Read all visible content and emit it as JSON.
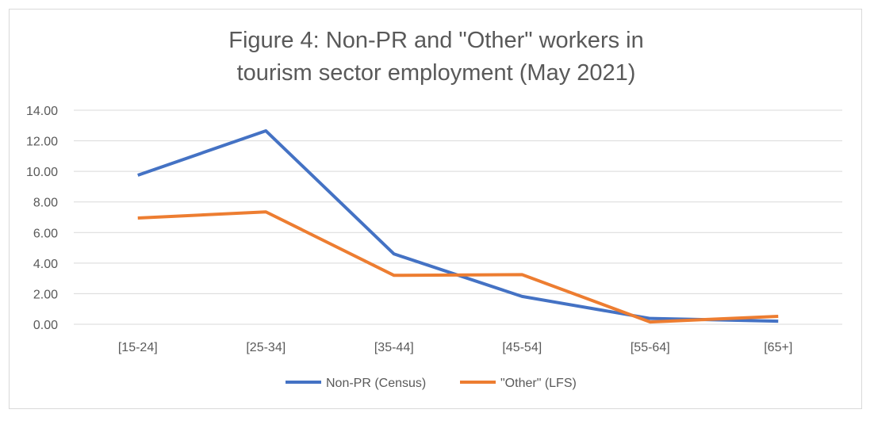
{
  "chart_data": {
    "type": "line",
    "title": [
      "Figure 4: Non-PR and \"Other\" workers in",
      "tourism sector employment (May 2021)"
    ],
    "xlabel": "",
    "ylabel": "",
    "categories": [
      "[15-24]",
      "[25-34]",
      "[35-44]",
      "[45-54]",
      "[55-64]",
      "[65+]"
    ],
    "yticks": [
      "0.00",
      "2.00",
      "4.00",
      "6.00",
      "8.00",
      "10.00",
      "12.00",
      "14.00"
    ],
    "ylim": [
      0,
      14
    ],
    "grid": true,
    "legend_position": "bottom",
    "series": [
      {
        "name": "Non-PR (Census)",
        "color": "#4472C4",
        "values": [
          9.75,
          12.65,
          4.6,
          1.82,
          0.38,
          0.2
        ]
      },
      {
        "name": "\"Other\" (LFS)",
        "color": "#ED7D31",
        "values": [
          6.95,
          7.35,
          3.2,
          3.25,
          0.15,
          0.52
        ]
      }
    ]
  }
}
